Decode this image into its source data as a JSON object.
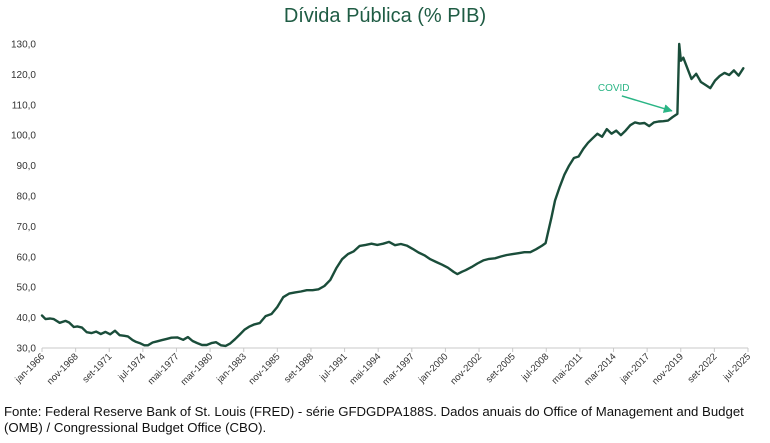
{
  "chart_data": {
    "type": "line",
    "title": "Dívida Pública (% PIB)",
    "xlabel": "",
    "ylabel": "",
    "ylim": [
      30,
      130
    ],
    "yticks": [
      "30,0",
      "40,0",
      "50,0",
      "60,0",
      "70,0",
      "80,0",
      "90,0",
      "100,0",
      "110,0",
      "120,0",
      "130,0"
    ],
    "xticks": [
      "jan-1966",
      "nov-1968",
      "set-1971",
      "jul-1974",
      "mai-1977",
      "mar-1980",
      "jan-1983",
      "nov-1985",
      "set-1988",
      "jul-1991",
      "mai-1994",
      "mar-1997",
      "jan-2000",
      "nov-2002",
      "set-2005",
      "jul-2008",
      "mai-2011",
      "mar-2014",
      "jan-2017",
      "nov-2019",
      "set-2022",
      "jul-2025"
    ],
    "series": [
      {
        "name": "Dívida Pública (% PIB)",
        "color": "#1a4d3a",
        "x": [
          1966.0,
          1966.3,
          1966.7,
          1967.0,
          1967.5,
          1968.0,
          1968.3,
          1968.7,
          1969.0,
          1969.4,
          1969.8,
          1970.2,
          1970.6,
          1971.0,
          1971.4,
          1971.8,
          1972.2,
          1972.6,
          1973.0,
          1973.3,
          1973.7,
          1974.0,
          1974.3,
          1974.7,
          1975.0,
          1975.4,
          1975.8,
          1976.2,
          1976.6,
          1977.0,
          1977.5,
          1978.0,
          1978.4,
          1978.8,
          1979.2,
          1979.6,
          1980.0,
          1980.4,
          1980.8,
          1981.2,
          1981.6,
          1982.0,
          1982.4,
          1982.8,
          1983.2,
          1983.6,
          1984.0,
          1984.5,
          1985.0,
          1985.5,
          1986.0,
          1986.5,
          1987.0,
          1987.5,
          1988.0,
          1988.5,
          1989.0,
          1989.5,
          1990.0,
          1990.5,
          1991.0,
          1991.5,
          1992.0,
          1992.5,
          1993.0,
          1993.5,
          1994.0,
          1994.5,
          1995.0,
          1995.5,
          1996.0,
          1996.5,
          1997.0,
          1997.5,
          1998.0,
          1998.5,
          1999.0,
          1999.5,
          2000.0,
          2000.5,
          2001.0,
          2001.3,
          2001.7,
          2002.0,
          2002.5,
          2003.0,
          2003.5,
          2004.0,
          2004.5,
          2005.0,
          2005.5,
          2006.0,
          2006.5,
          2007.0,
          2007.5,
          2008.0,
          2008.5,
          2008.8,
          2009.0,
          2009.3,
          2009.6,
          2010.0,
          2010.4,
          2010.8,
          2011.2,
          2011.6,
          2012.0,
          2012.4,
          2012.8,
          2013.2,
          2013.6,
          2014.0,
          2014.4,
          2014.8,
          2015.2,
          2015.6,
          2016.0,
          2016.4,
          2016.8,
          2017.2,
          2017.6,
          2018.0,
          2018.4,
          2018.8,
          2019.2,
          2019.6,
          2020.0,
          2020.15,
          2020.3,
          2020.5,
          2020.8,
          2021.2,
          2021.6,
          2022.0,
          2022.4,
          2022.8,
          2023.2,
          2023.6,
          2024.0,
          2024.4,
          2024.8,
          2025.2,
          2025.6
        ],
        "values": [
          40.7,
          39.5,
          39.7,
          39.5,
          38.3,
          38.9,
          38.4,
          36.9,
          37.1,
          36.7,
          35.2,
          34.9,
          35.4,
          34.6,
          35.3,
          34.5,
          35.7,
          34.2,
          34.0,
          33.8,
          32.6,
          32.0,
          31.6,
          30.9,
          30.9,
          31.8,
          32.2,
          32.6,
          33.0,
          33.4,
          33.5,
          32.7,
          33.6,
          32.3,
          31.6,
          31.0,
          31.0,
          31.6,
          31.9,
          30.9,
          30.7,
          31.5,
          32.9,
          34.4,
          36.0,
          37.0,
          37.7,
          38.2,
          40.5,
          41.2,
          43.5,
          46.7,
          47.9,
          48.3,
          48.6,
          49.0,
          49.0,
          49.3,
          50.4,
          52.4,
          56.2,
          59.2,
          60.9,
          61.8,
          63.6,
          63.9,
          64.3,
          63.9,
          64.3,
          64.9,
          63.8,
          64.2,
          63.7,
          62.6,
          61.4,
          60.5,
          59.2,
          58.3,
          57.4,
          56.4,
          55.0,
          54.3,
          55.1,
          55.6,
          56.6,
          57.8,
          58.8,
          59.3,
          59.5,
          60.1,
          60.6,
          60.9,
          61.2,
          61.5,
          61.5,
          62.5,
          63.7,
          64.5,
          68.0,
          73.0,
          78.5,
          83.0,
          87.0,
          90.0,
          92.5,
          93.0,
          95.5,
          97.5,
          99.0,
          100.5,
          99.5,
          102.0,
          100.5,
          101.5,
          100.0,
          101.5,
          103.3,
          104.2,
          103.8,
          104.0,
          103.0,
          104.2,
          104.5,
          104.6,
          104.8,
          106.0,
          107.0,
          130.0,
          124.5,
          125.5,
          122.5,
          118.5,
          120.2,
          117.5,
          116.5,
          115.5,
          118.0,
          119.5,
          120.5,
          119.8,
          121.3,
          119.6,
          122.0
        ]
      }
    ],
    "annotations": [
      {
        "text": "COVID",
        "color": "#2ab585",
        "x": 2019.7,
        "y": 107
      }
    ]
  },
  "source_note": "Fonte: Federal Reserve Bank of St. Louis (FRED) - série GFDGDPA188S. Dados anuais do Office of Management and Budget (OMB) / Congressional Budget Office (CBO)."
}
